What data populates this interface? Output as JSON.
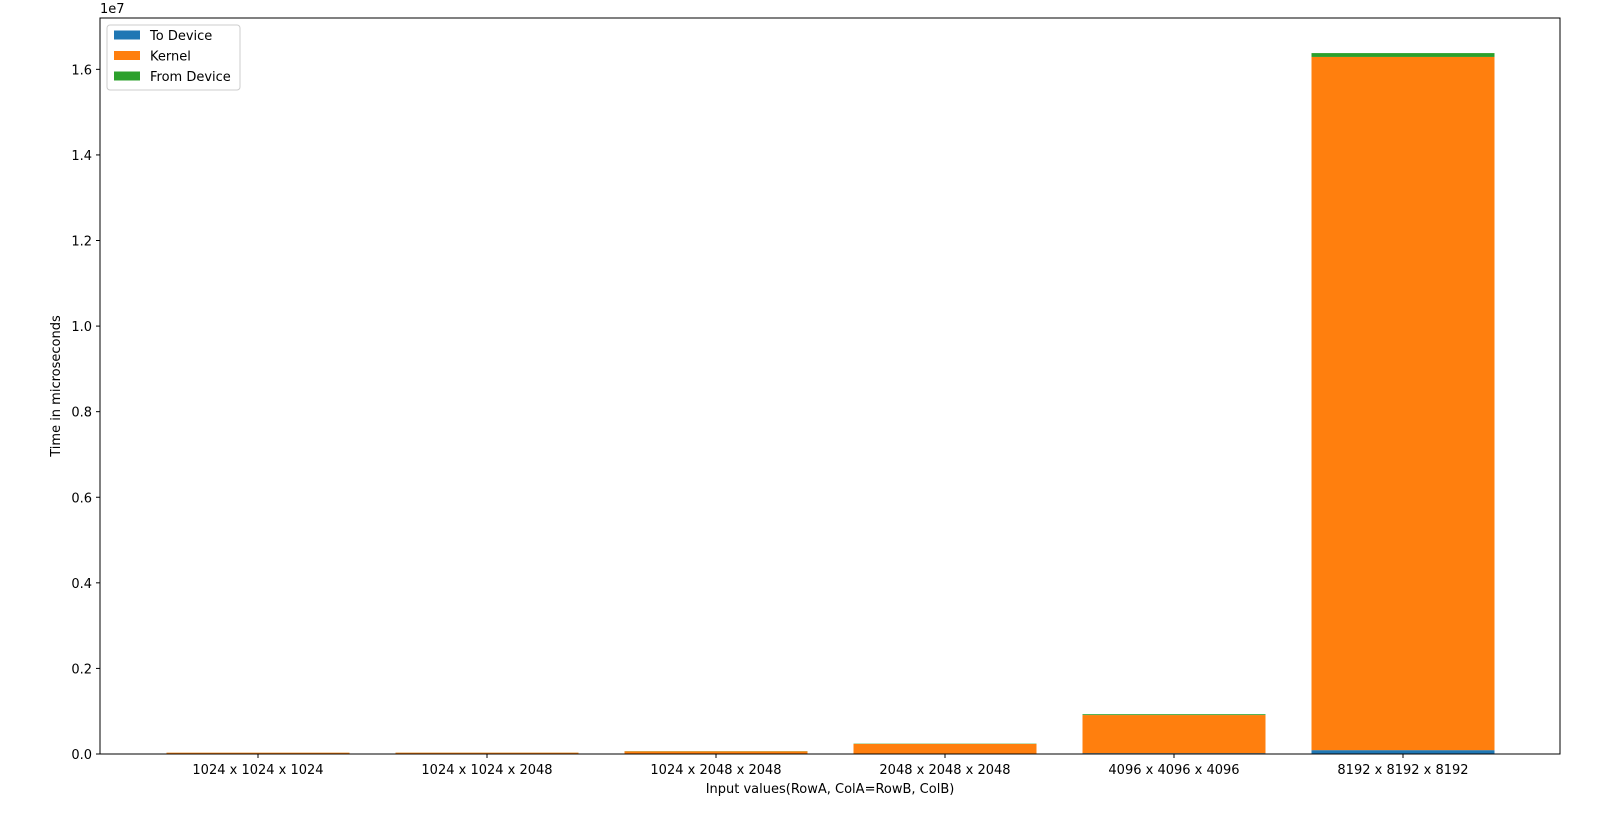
{
  "chart_data": {
    "type": "bar",
    "stacked": true,
    "categories": [
      "1024 x 1024 x 1024",
      "1024 x 1024 x 2048",
      "1024 x 2048 x 2048",
      "2048 x 2048 x 2048",
      "4096 x 4096 x 4096",
      "8192 x 8192 x 8192"
    ],
    "series": [
      {
        "name": "To Device",
        "color": "#1f77b4",
        "values": [
          1200,
          1800,
          3000,
          5000,
          20000,
          90000
        ]
      },
      {
        "name": "Kernel",
        "color": "#ff7f0e",
        "values": [
          30000,
          30000,
          60000,
          230000,
          890000,
          16200000
        ]
      },
      {
        "name": "From Device",
        "color": "#2ca02c",
        "values": [
          1000,
          1500,
          4000,
          7000,
          20000,
          90000
        ]
      }
    ],
    "xlabel": "Input values(RowA, ColA=RowB, ColB)",
    "ylabel": "Time in microseconds",
    "ylim": [
      0,
      17200000
    ],
    "y_ticks": [
      0,
      2000000,
      4000000,
      6000000,
      8000000,
      10000000,
      12000000,
      14000000,
      16000000
    ],
    "y_tick_labels": [
      "0.0",
      "0.2",
      "0.4",
      "0.6",
      "0.8",
      "1.0",
      "1.2",
      "1.4",
      "1.6"
    ],
    "offset_text": "1e7",
    "legend_position": "top-left",
    "grid": false
  }
}
